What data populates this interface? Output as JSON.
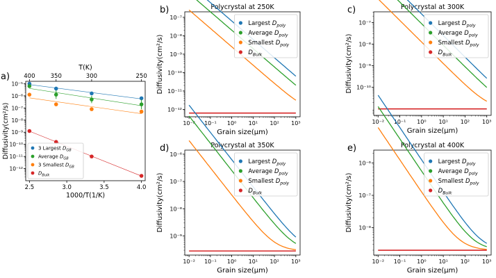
{
  "colors": {
    "blue": "#1f77b4",
    "green": "#2ca02c",
    "orange": "#ff7f0e",
    "red": "#d62728"
  },
  "chart_data": [
    {
      "id": "a",
      "panel_label": "a)",
      "type": "scatter",
      "title": "",
      "xlabel": "1000/T(1/K)",
      "ylabel": "Diffusivity(cm²/s)",
      "top_xlabel": "T(K)",
      "xlim": [
        2.45,
        4.05
      ],
      "ylim_log10": [
        -13,
        -4.8
      ],
      "xticks": [
        2.5,
        3.0,
        3.5,
        4.0
      ],
      "xtick_labels": [
        "2.5",
        "3.0",
        "3.5",
        "4.0"
      ],
      "top_ticks": [
        2.5,
        2.857,
        3.333,
        4.0
      ],
      "top_tick_labels": [
        "400",
        "350",
        "300",
        "250"
      ],
      "yticks": [
        -12,
        -11,
        -10,
        -9,
        -8,
        -7,
        -6,
        -5
      ],
      "ytick_labels": [
        "10⁻¹²",
        "10⁻¹¹",
        "10⁻¹⁰",
        "10⁻⁹",
        "10⁻⁸",
        "10⁻⁷",
        "10⁻⁶",
        "10⁻⁵"
      ],
      "legend": {
        "position": "lower-left",
        "entries": [
          "3 Largest D_GB",
          "Average D_GB",
          "3 Smallest D_GB",
          "D_Bulk"
        ]
      },
      "series": [
        {
          "name": "3 Largest D_GB",
          "color": "blue",
          "x": [
            2.5,
            2.857,
            3.333,
            4.0
          ],
          "log10_y": [
            -5.0,
            -5.4,
            -5.8,
            -6.2
          ],
          "err": [
            0,
            0,
            0,
            0
          ]
        },
        {
          "name": "Average D_GB",
          "color": "green",
          "x": [
            2.5,
            2.857,
            3.333,
            4.0
          ],
          "log10_y": [
            -5.2,
            -5.9,
            -6.3,
            -6.7
          ],
          "err": [
            0.1,
            0.35,
            0.3,
            0.4
          ]
        },
        {
          "name": "3 Smallest D_GB",
          "color": "orange",
          "x": [
            2.5,
            2.857,
            3.333,
            4.0
          ],
          "log10_y": [
            -5.9,
            -6.7,
            -7.1,
            -7.3
          ],
          "err": [
            0,
            0,
            0,
            0
          ]
        },
        {
          "name": "D_Bulk",
          "color": "red",
          "x": [
            2.5,
            2.857,
            3.333,
            4.0
          ],
          "log10_y": [
            -8.9,
            -9.8,
            -11.0,
            -12.6
          ],
          "err": [
            0,
            0,
            0,
            0
          ]
        }
      ]
    },
    {
      "id": "b",
      "panel_label": "b)",
      "type": "line",
      "title": "Polycrystal at 250K",
      "xlabel": "Grain size(μm)",
      "ylabel": "Diffusivity(cm²/s)",
      "xlim_log10": [
        -2.2,
        3.2
      ],
      "ylim_log10": [
        -12.4,
        -6.7
      ],
      "xticks": [
        -2,
        -1,
        0,
        1,
        2,
        3
      ],
      "xtick_labels": [
        "10⁻²",
        "10⁻¹",
        "10⁰",
        "10¹",
        "10²",
        "10³"
      ],
      "yticks": [
        -12,
        -11,
        -10,
        -9,
        -8,
        -7
      ],
      "ytick_labels": [
        "10⁻¹²",
        "10⁻¹¹",
        "10⁻¹⁰",
        "10⁻⁹",
        "10⁻⁸",
        "10⁻⁷"
      ],
      "legend": {
        "position": "top-right",
        "entries": [
          "Largest D_poly",
          "Average D_poly",
          "Smallest D_poly",
          "D_Bulk"
        ]
      },
      "series": [
        {
          "name": "Largest D_poly",
          "color": "blue",
          "dgb_log10": -6.0
        },
        {
          "name": "Average D_poly",
          "color": "green",
          "dgb_log10": -6.5
        },
        {
          "name": "Smallest D_poly",
          "color": "orange",
          "dgb_log10": -7.4
        },
        {
          "name": "D_Bulk",
          "color": "red",
          "bulk_log10": -12.2
        }
      ]
    },
    {
      "id": "c",
      "panel_label": "c)",
      "type": "line",
      "title": "Polycrystal at 300K",
      "xlabel": "Grain size(μm)",
      "ylabel": "Diffusivity(cm²/s)",
      "xlim_log10": [
        -2.2,
        3.2
      ],
      "ylim_log10": [
        -11.3,
        -6.5
      ],
      "xticks": [
        -2,
        -1,
        0,
        1,
        2,
        3
      ],
      "xtick_labels": [
        "10⁻²",
        "10⁻¹",
        "10⁰",
        "10¹",
        "10²",
        "10³"
      ],
      "yticks": [
        -10,
        -9,
        -8,
        -7
      ],
      "ytick_labels": [
        "10⁻¹⁰",
        "10⁻⁹",
        "10⁻⁸",
        "10⁻⁷"
      ],
      "legend": {
        "position": "top-right",
        "entries": [
          "Largest D_poly",
          "Average D_poly",
          "Smallest D_poly",
          "D_Bulk"
        ]
      },
      "series": [
        {
          "name": "Largest D_poly",
          "color": "blue",
          "dgb_log10": -5.4
        },
        {
          "name": "Average D_poly",
          "color": "green",
          "dgb_log10": -5.85
        },
        {
          "name": "Smallest D_poly",
          "color": "orange",
          "dgb_log10": -6.7
        },
        {
          "name": "D_Bulk",
          "color": "red",
          "bulk_log10": -11.0
        }
      ]
    },
    {
      "id": "d",
      "panel_label": "d)",
      "type": "line",
      "title": "Polycrystal at 350K",
      "xlabel": "Grain size(μm)",
      "ylabel": "Diffusivity(cm²/s)",
      "xlim_log10": [
        -2.2,
        3.2
      ],
      "ylim_log10": [
        -9.7,
        -5.85
      ],
      "xticks": [
        -2,
        -1,
        0,
        1,
        2,
        3
      ],
      "xtick_labels": [
        "10⁻²",
        "10⁻¹",
        "10⁰",
        "10¹",
        "10²",
        "10³"
      ],
      "yticks": [
        -9,
        -8,
        -7,
        -6
      ],
      "ytick_labels": [
        "10⁻⁹",
        "10⁻⁸",
        "10⁻⁷",
        "10⁻⁶"
      ],
      "legend": {
        "position": "top-right",
        "entries": [
          "Largest D_poly",
          "Average D_poly",
          "Smallest D_poly",
          "D_Bulk"
        ]
      },
      "series": [
        {
          "name": "Largest D_poly",
          "color": "blue",
          "dgb_log10": -5.0
        },
        {
          "name": "Average D_poly",
          "color": "green",
          "dgb_log10": -5.4
        },
        {
          "name": "Smallest D_poly",
          "color": "orange",
          "dgb_log10": -6.3
        },
        {
          "name": "D_Bulk",
          "color": "red",
          "bulk_log10": -9.55
        }
      ]
    },
    {
      "id": "e",
      "panel_label": "e)",
      "type": "line",
      "title": "Polycrystal at 400K",
      "xlabel": "Grain size(μm)",
      "ylabel": "Diffusivity(cm²/s)",
      "xlim_log10": [
        -2.2,
        3.2
      ],
      "ylim_log10": [
        -8.85,
        -5.6
      ],
      "xticks": [
        -2,
        -1,
        0,
        1,
        2,
        3
      ],
      "xtick_labels": [
        "10⁻²",
        "10⁻¹",
        "10⁰",
        "10¹",
        "10²",
        "10³"
      ],
      "yticks": [
        -8,
        -7,
        -6
      ],
      "ytick_labels": [
        "10⁻⁸",
        "10⁻⁷",
        "10⁻⁶"
      ],
      "legend": {
        "position": "top-right",
        "entries": [
          "Largest D_poly",
          "Average D_poly",
          "Smallest D_poly",
          "D_Bulk"
        ]
      },
      "series": [
        {
          "name": "Largest D_poly",
          "color": "blue",
          "dgb_log10": -4.7
        },
        {
          "name": "Average D_poly",
          "color": "green",
          "dgb_log10": -5.05
        },
        {
          "name": "Smallest D_poly",
          "color": "orange",
          "dgb_log10": -5.7
        },
        {
          "name": "D_Bulk",
          "color": "red",
          "bulk_log10": -8.7
        }
      ]
    }
  ]
}
